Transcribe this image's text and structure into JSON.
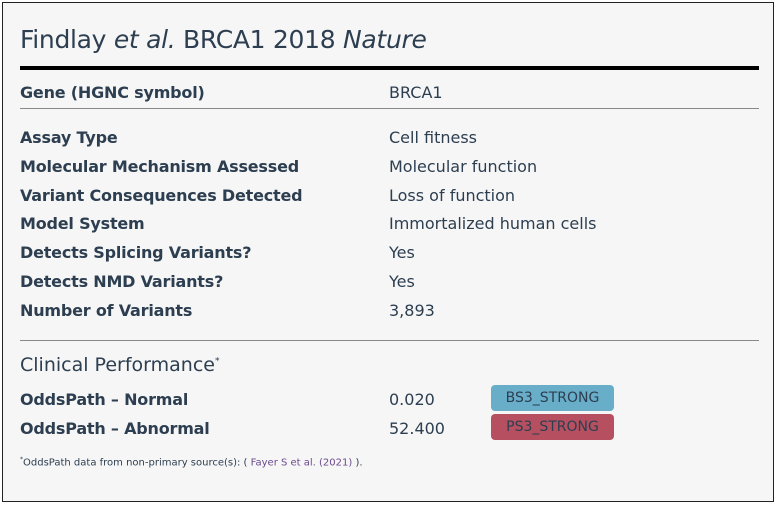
{
  "title": {
    "author": "Findlay",
    "etal": "et al.",
    "middle": "BRCA1 2018",
    "journal": "Nature"
  },
  "gene": {
    "label": "Gene (HGNC symbol)",
    "value": "BRCA1"
  },
  "rows": [
    {
      "label": "Assay Type",
      "value": "Cell fitness"
    },
    {
      "label": "Molecular Mechanism Assessed",
      "value": "Molecular function"
    },
    {
      "label": "Variant Consequences Detected",
      "value": "Loss of function"
    },
    {
      "label": "Model System",
      "value": "Immortalized human cells"
    },
    {
      "label": "Detects Splicing Variants?",
      "value": "Yes"
    },
    {
      "label": "Detects NMD Variants?",
      "value": "Yes"
    },
    {
      "label": "Number of Variants",
      "value": "3,893"
    }
  ],
  "clinical": {
    "heading": "Clinical Performance",
    "marker": "*",
    "rows": [
      {
        "label": "OddsPath – Normal",
        "value": "0.020",
        "badge": "BS3_STRONG",
        "color": "#69aec8"
      },
      {
        "label": "OddsPath – Abnormal",
        "value": "52.400",
        "badge": "PS3_STRONG",
        "color": "#b65060"
      }
    ],
    "footnote": {
      "marker": "*",
      "prefix": "OddsPath data from non-primary source(s): ( ",
      "link": "Fayer S et al. (2021)",
      "suffix": " )."
    }
  }
}
